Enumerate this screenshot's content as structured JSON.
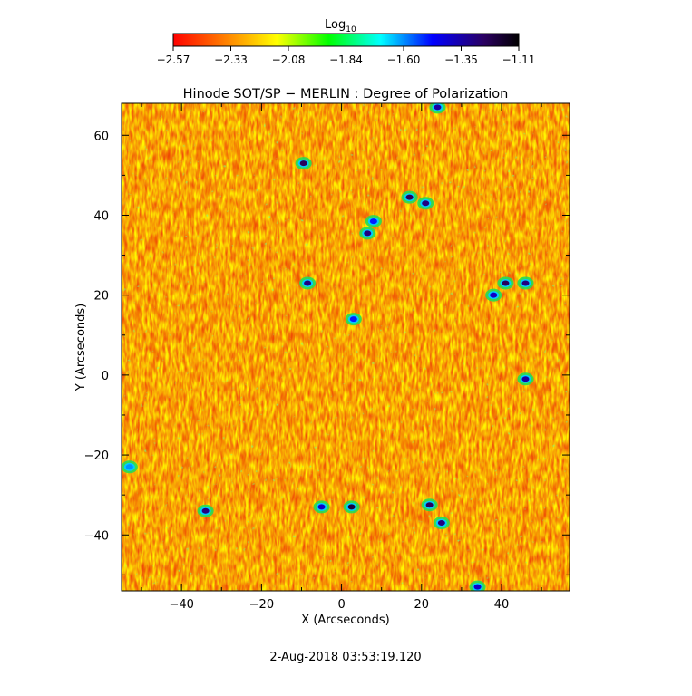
{
  "chart_data": {
    "type": "heatmap",
    "title": "Hinode SOT/SP − MERLIN : Degree of Polarization",
    "xlabel": "X (Arcseconds)",
    "ylabel": "Y (Arcseconds)",
    "xlim": [
      -55,
      57
    ],
    "ylim": [
      -54,
      68
    ],
    "x_ticks": [
      -40,
      -20,
      0,
      20,
      40
    ],
    "y_ticks": [
      -40,
      -20,
      0,
      20,
      40,
      60
    ],
    "x_tick_labels": [
      "−40",
      "−20",
      "0",
      "20",
      "40"
    ],
    "y_tick_labels": [
      "−40",
      "−20",
      "0",
      "20",
      "40",
      "60"
    ],
    "colorbar": {
      "label_base": "Log",
      "label_sub": "10",
      "range": [
        -2.57,
        -1.11
      ],
      "tick_labels": [
        "−2.57",
        "−2.33",
        "−2.08",
        "−1.84",
        "−1.60",
        "−1.35",
        "−1.11"
      ],
      "colormap": "rainbow (red to violet)"
    },
    "background_value": -2.4,
    "features": [
      {
        "x": -9.5,
        "y": 53,
        "value": -1.25
      },
      {
        "x": 17,
        "y": 44.5,
        "value": -1.25
      },
      {
        "x": 21,
        "y": 43,
        "value": -1.3
      },
      {
        "x": 6.5,
        "y": 35.5,
        "value": -1.3
      },
      {
        "x": 8,
        "y": 38.5,
        "value": -1.5
      },
      {
        "x": -8.5,
        "y": 23,
        "value": -1.3
      },
      {
        "x": 41,
        "y": 23,
        "value": -1.25
      },
      {
        "x": 46,
        "y": 23,
        "value": -1.3
      },
      {
        "x": 38,
        "y": 20,
        "value": -1.4
      },
      {
        "x": 3,
        "y": 14,
        "value": -1.5
      },
      {
        "x": 46,
        "y": -1,
        "value": -1.35
      },
      {
        "x": 22,
        "y": -32.5,
        "value": -1.25
      },
      {
        "x": 2.5,
        "y": -33,
        "value": -1.2
      },
      {
        "x": -5,
        "y": -33,
        "value": -1.4
      },
      {
        "x": -34,
        "y": -34,
        "value": -1.3
      },
      {
        "x": 25,
        "y": -37,
        "value": -1.3
      },
      {
        "x": 24,
        "y": 67,
        "value": -1.35
      },
      {
        "x": 34,
        "y": -53,
        "value": -1.4
      },
      {
        "x": -53,
        "y": -23,
        "value": -1.6
      }
    ]
  },
  "footer_timestamp": "2-Aug-2018 03:53:19.120",
  "colors": {
    "background": "#ffffff",
    "axes": "#000000"
  }
}
